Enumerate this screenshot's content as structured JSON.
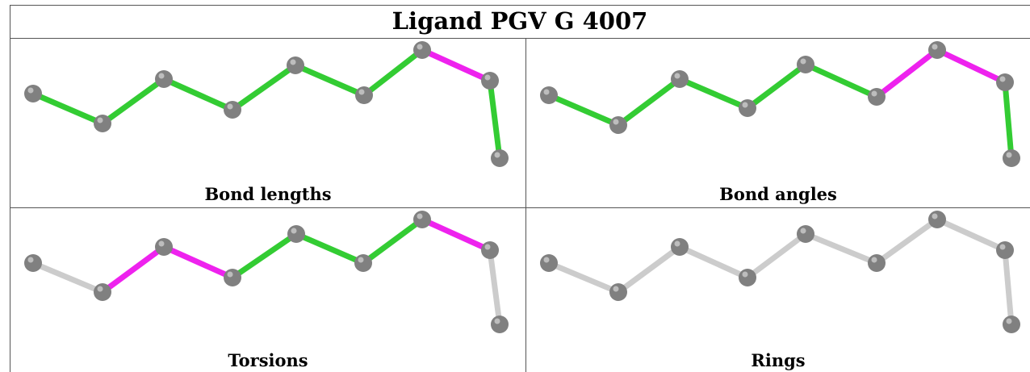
{
  "title": "Ligand PGV G 4007",
  "panels": [
    {
      "label": "Bond lengths",
      "bond_colors": [
        "green",
        "green",
        "green",
        "green",
        "green",
        "green",
        "magenta",
        "green"
      ]
    },
    {
      "label": "Bond angles",
      "bond_colors": [
        "green",
        "green",
        "green",
        "green",
        "green",
        "magenta",
        "magenta",
        "green"
      ]
    },
    {
      "label": "Torsions",
      "bond_colors": [
        "gray",
        "magenta",
        "magenta",
        "green",
        "green",
        "green",
        "magenta",
        "gray"
      ]
    },
    {
      "label": "Rings",
      "bond_colors": [
        "gray",
        "gray",
        "gray",
        "gray",
        "gray",
        "gray",
        "gray",
        "gray"
      ]
    }
  ],
  "colors": {
    "green": "#33cc33",
    "magenta": "#ee22ee",
    "gray": "#cccccc",
    "atom": "#808080"
  }
}
